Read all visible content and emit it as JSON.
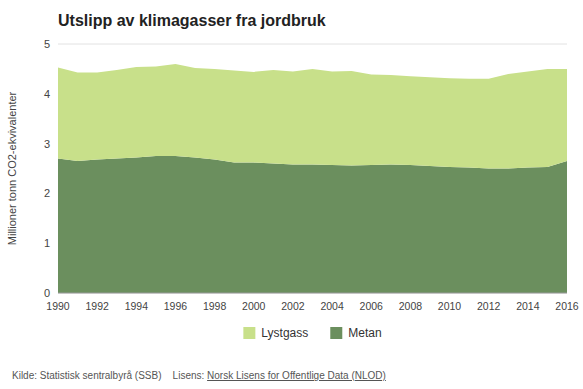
{
  "chart_data": {
    "type": "area",
    "stacked": true,
    "title": "Utslipp av klimagasser fra jordbruk",
    "y_label": "Millioner tonn CO2-ekvivalenter",
    "x": [
      1990,
      1991,
      1992,
      1993,
      1994,
      1995,
      1996,
      1997,
      1998,
      1999,
      2000,
      2001,
      2002,
      2003,
      2004,
      2005,
      2006,
      2007,
      2008,
      2009,
      2010,
      2011,
      2012,
      2013,
      2014,
      2015,
      2016
    ],
    "series": [
      {
        "name": "Metan",
        "color": "#6b8f5e",
        "values": [
          2.7,
          2.65,
          2.68,
          2.7,
          2.72,
          2.75,
          2.75,
          2.72,
          2.68,
          2.62,
          2.62,
          2.6,
          2.58,
          2.58,
          2.57,
          2.56,
          2.57,
          2.58,
          2.57,
          2.55,
          2.53,
          2.52,
          2.5,
          2.5,
          2.52,
          2.53,
          2.65
        ]
      },
      {
        "name": "Lystgass",
        "color": "#c8e08a",
        "values": [
          1.83,
          1.78,
          1.75,
          1.78,
          1.82,
          1.8,
          1.85,
          1.8,
          1.82,
          1.85,
          1.82,
          1.88,
          1.87,
          1.92,
          1.88,
          1.9,
          1.82,
          1.8,
          1.78,
          1.78,
          1.78,
          1.78,
          1.8,
          1.9,
          1.93,
          1.97,
          1.85
        ]
      }
    ],
    "xlim": [
      1990,
      2016
    ],
    "xticks": [
      1990,
      1992,
      1994,
      1996,
      1998,
      2000,
      2002,
      2004,
      2006,
      2008,
      2010,
      2012,
      2014,
      2016
    ],
    "ylim": [
      0,
      5
    ],
    "yticks": [
      0,
      1,
      2,
      3,
      4,
      5
    ],
    "grid": true,
    "legend": "bottom",
    "annotations": [
      "Kilde: Statistisk sentralbyrå (SSB)    Lisens: ",
      "Norsk Lisens for Offentlige Data (NLOD)"
    ]
  }
}
